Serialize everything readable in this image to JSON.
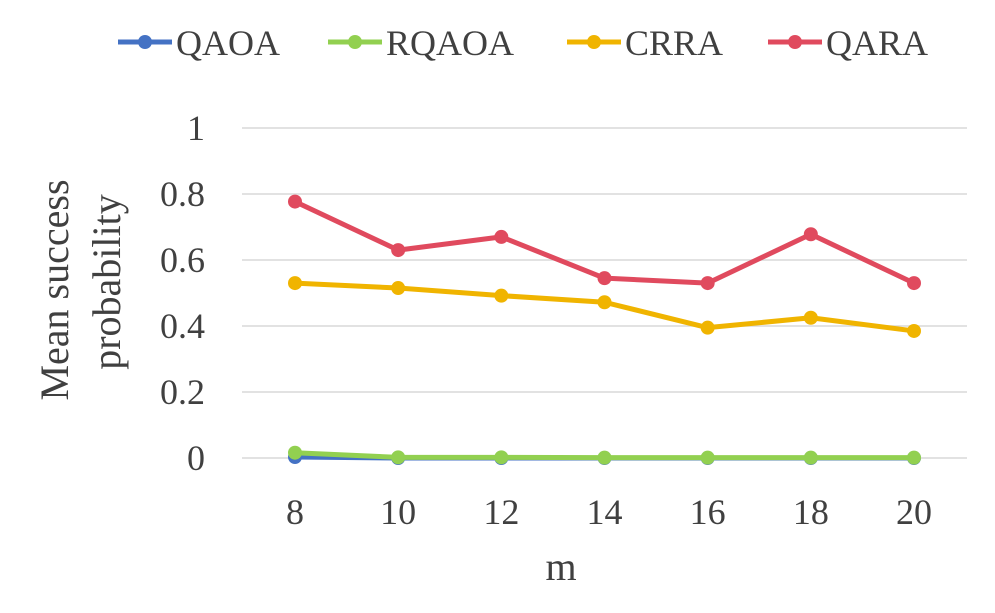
{
  "chart_data": {
    "type": "line",
    "title": "",
    "xlabel": "m",
    "ylabel_lines": [
      "Mean success",
      "probability"
    ],
    "x": [
      8,
      10,
      12,
      14,
      16,
      18,
      20
    ],
    "x_tick_labels": [
      "8",
      "10",
      "12",
      "14",
      "16",
      "18",
      "20"
    ],
    "y_tick_labels": [
      "0",
      "0.2",
      "0.4",
      "0.6",
      "0.8",
      "1"
    ],
    "ylim": [
      0,
      1
    ],
    "y_ticks": [
      0,
      0.2,
      0.4,
      0.6,
      0.8,
      1
    ],
    "grid": true,
    "legend_position": "top",
    "series": [
      {
        "name": "QAOA",
        "color": "#4472C4",
        "values": [
          0.003,
          0.0,
          0.0,
          0.0,
          0.0,
          0.0,
          0.0
        ]
      },
      {
        "name": "RQAOA",
        "color": "#92D050",
        "values": [
          0.016,
          0.002,
          0.002,
          0.001,
          0.001,
          0.001,
          0.001
        ]
      },
      {
        "name": "CRRA",
        "color": "#F0B400",
        "values": [
          0.53,
          0.515,
          0.492,
          0.472,
          0.395,
          0.425,
          0.385
        ]
      },
      {
        "name": "QARA",
        "color": "#E04A5E",
        "values": [
          0.777,
          0.63,
          0.67,
          0.545,
          0.53,
          0.678,
          0.53
        ]
      }
    ]
  }
}
